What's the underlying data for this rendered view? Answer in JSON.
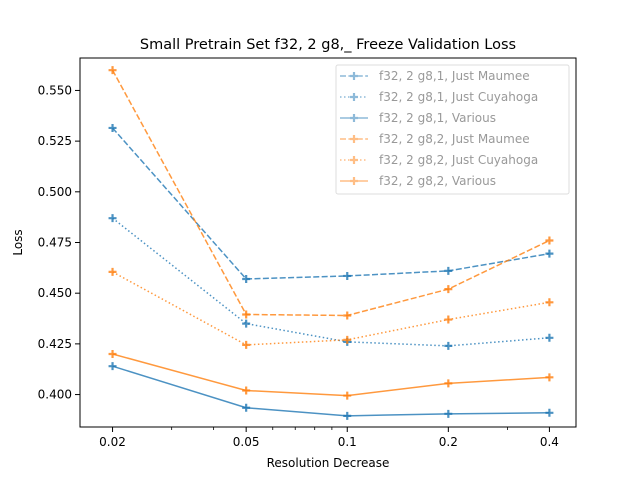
{
  "chart_data": {
    "type": "line",
    "title": "Small Pretrain Set f32, 2 g8,_ Freeze Validation Loss",
    "xlabel": "Resolution Decrease",
    "ylabel": "Loss",
    "x_scale": "log",
    "x": [
      0.02,
      0.05,
      0.1,
      0.2,
      0.4
    ],
    "x_tick_labels": [
      "0.02",
      "0.05",
      "0.1",
      "0.2",
      "0.4"
    ],
    "xlim": [
      0.016,
      0.48
    ],
    "ylim": [
      0.384,
      0.566
    ],
    "y_ticks": [
      0.4,
      0.425,
      0.45,
      0.475,
      0.5,
      0.525,
      0.55
    ],
    "y_tick_labels": [
      "0.400",
      "0.425",
      "0.450",
      "0.475",
      "0.500",
      "0.525",
      "0.550"
    ],
    "grid": false,
    "legend_position": "upper right",
    "series": [
      {
        "name": "f32, 2 g8,1, Just Maumee",
        "color": "#1f77b4",
        "linestyle": "dashed",
        "marker": "plus",
        "values": [
          0.5315,
          0.457,
          0.4585,
          0.461,
          0.4695
        ]
      },
      {
        "name": "f32, 2 g8,1, Just Cuyahoga",
        "color": "#1f77b4",
        "linestyle": "dotted",
        "marker": "plus",
        "values": [
          0.487,
          0.435,
          0.426,
          0.424,
          0.428
        ]
      },
      {
        "name": "f32, 2 g8,1, Various",
        "color": "#1f77b4",
        "linestyle": "solid",
        "marker": "plus",
        "values": [
          0.414,
          0.3935,
          0.3895,
          0.3905,
          0.391
        ]
      },
      {
        "name": "f32, 2 g8,2, Just Maumee",
        "color": "#ff7f0e",
        "linestyle": "dashed",
        "marker": "plus",
        "values": [
          0.56,
          0.4395,
          0.439,
          0.452,
          0.476
        ]
      },
      {
        "name": "f32, 2 g8,2, Just Cuyahoga",
        "color": "#ff7f0e",
        "linestyle": "dotted",
        "marker": "plus",
        "values": [
          0.4605,
          0.4245,
          0.427,
          0.437,
          0.4455
        ]
      },
      {
        "name": "f32, 2 g8,2, Various",
        "color": "#ff7f0e",
        "linestyle": "solid",
        "marker": "plus",
        "values": [
          0.42,
          0.402,
          0.3995,
          0.4055,
          0.4085
        ]
      }
    ]
  }
}
